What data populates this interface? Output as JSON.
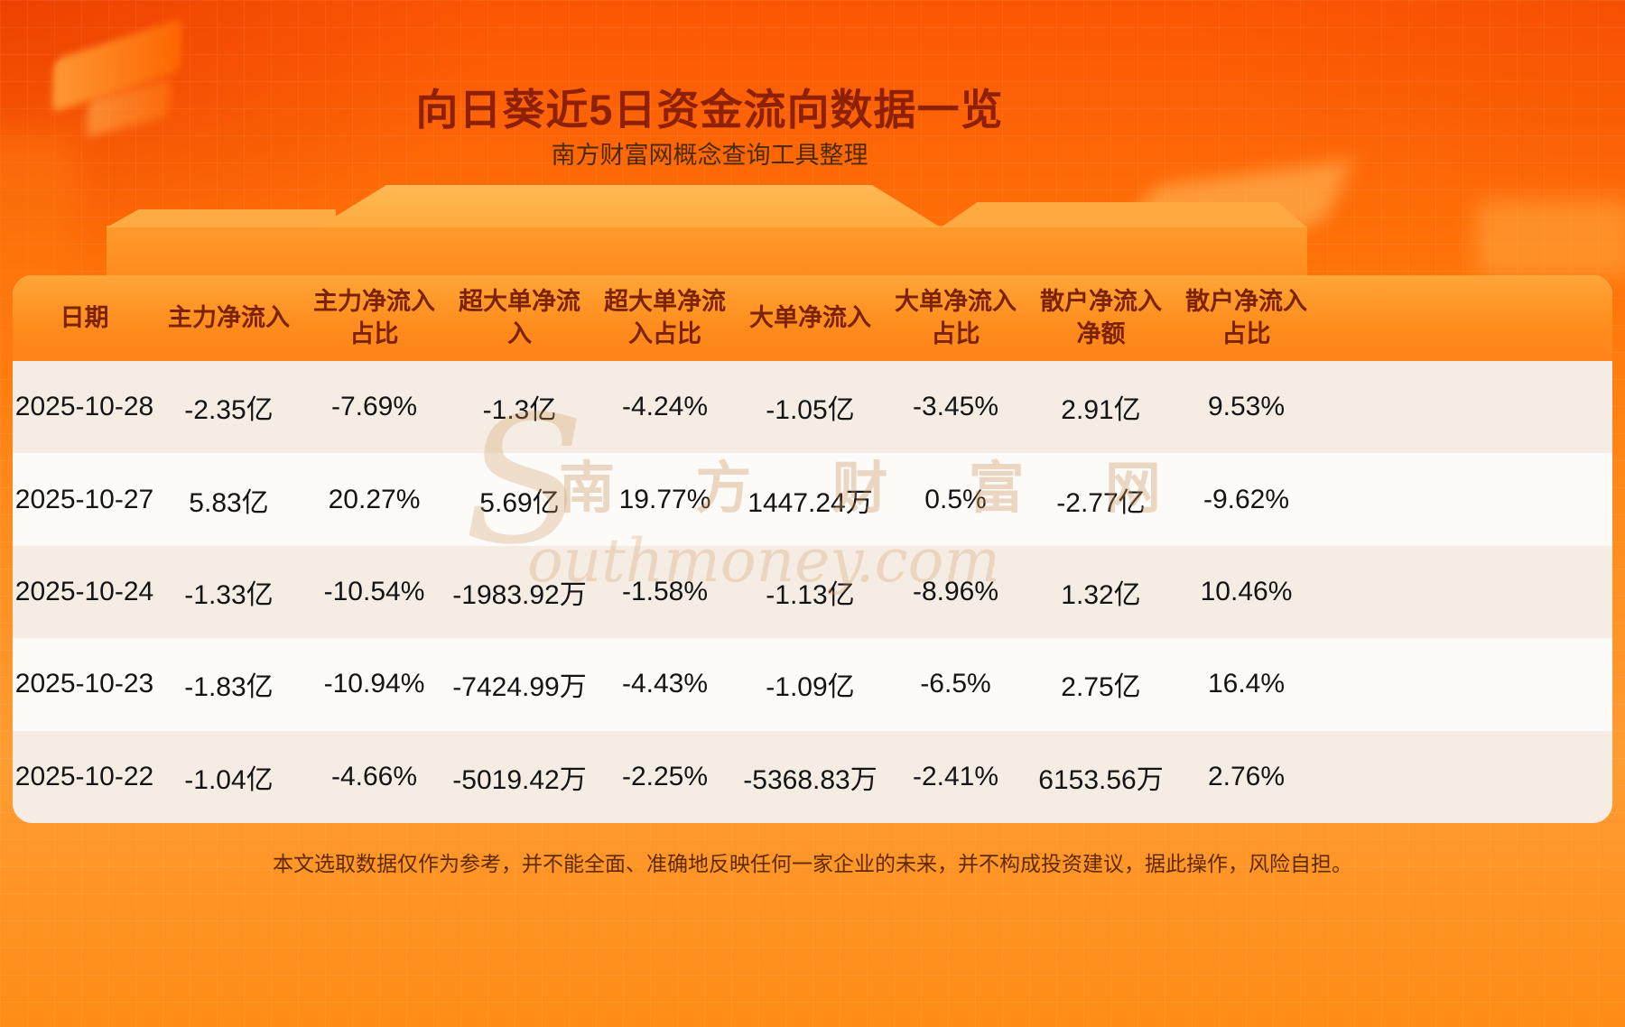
{
  "page": {
    "title": "向日葵近5日资金流向数据一览",
    "subtitle": "南方财富网概念查询工具整理",
    "footer_note": "本文选取数据仅作为参考，并不能全面、准确地反映任何一家企业的未来，并不构成投资建议，据此操作，风险自担。",
    "watermark": {
      "initial": "S",
      "cn": "南 方 财 富 网",
      "latin": "outhmoney.com"
    }
  },
  "colors": {
    "background_orange": "#ff7c0d",
    "title_text": "#8e2004",
    "header_bg": "#ff8c1d",
    "header_text": "#7c2205",
    "row_cream": "#f5ede3",
    "row_white": "#fdfbf8",
    "body_text": "#141414"
  },
  "chart_data": {
    "type": "table",
    "title": "向日葵近5日资金流向数据一览",
    "subtitle": "南方财富网概念查询工具整理",
    "columns": [
      "日期",
      "主力净流入",
      "主力净流入占比",
      "超大单净流入",
      "超大单净流入占比",
      "大单净流入",
      "大单净流入占比",
      "散户净流入净额",
      "散户净流入占比"
    ],
    "rows": [
      [
        "2025-10-28",
        "-2.35亿",
        "-7.69%",
        "-1.3亿",
        "-4.24%",
        "-1.05亿",
        "-3.45%",
        "2.91亿",
        "9.53%"
      ],
      [
        "2025-10-27",
        "5.83亿",
        "20.27%",
        "5.69亿",
        "19.77%",
        "1447.24万",
        "0.5%",
        "-2.77亿",
        "-9.62%"
      ],
      [
        "2025-10-24",
        "-1.33亿",
        "-10.54%",
        "-1983.92万",
        "-1.58%",
        "-1.13亿",
        "-8.96%",
        "1.32亿",
        "10.46%"
      ],
      [
        "2025-10-23",
        "-1.83亿",
        "-10.94%",
        "-7424.99万",
        "-4.43%",
        "-1.09亿",
        "-6.5%",
        "2.75亿",
        "16.4%"
      ],
      [
        "2025-10-22",
        "-1.04亿",
        "-4.66%",
        "-5019.42万",
        "-2.25%",
        "-5368.83万",
        "-2.41%",
        "6153.56万",
        "2.76%"
      ]
    ]
  }
}
